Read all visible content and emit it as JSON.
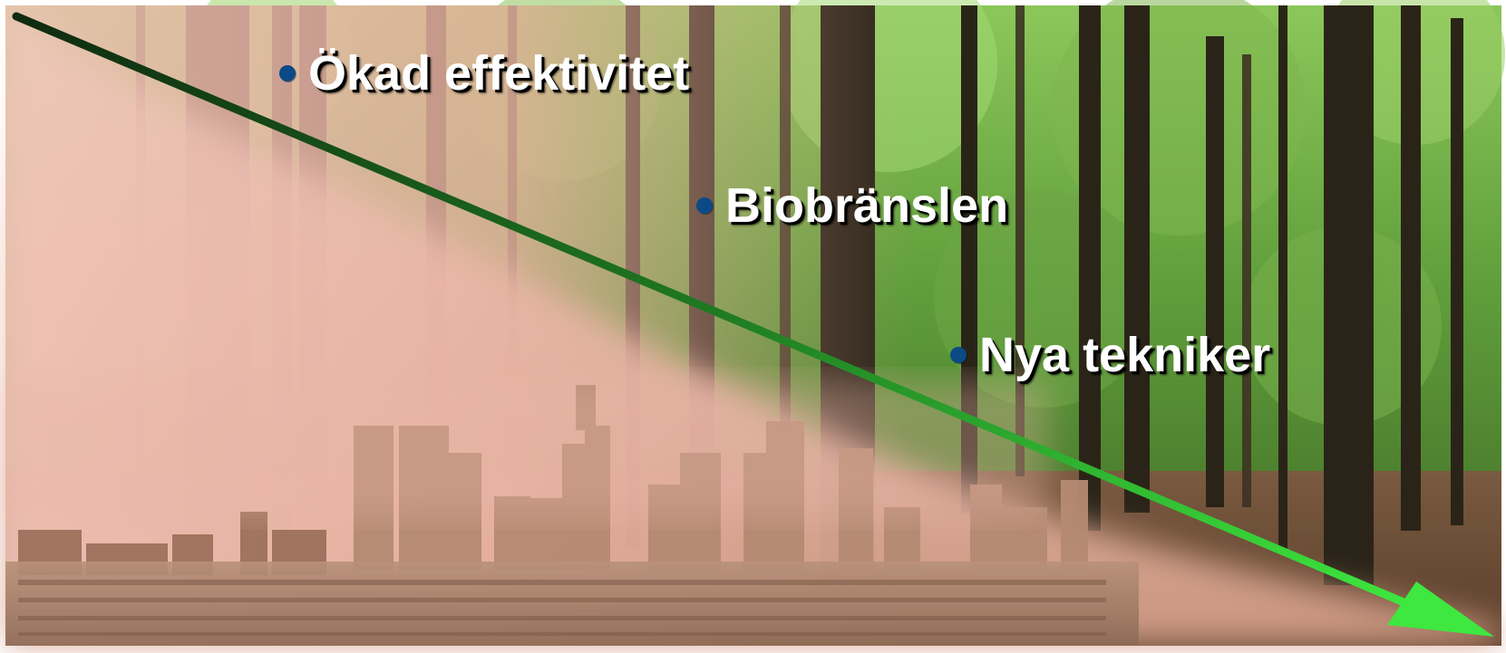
{
  "bullets": [
    {
      "text": "Ökad effektivitet"
    },
    {
      "text": "Biobränslen"
    },
    {
      "text": "Nya tekniker"
    }
  ],
  "colors": {
    "bullet_dot": "#0b4a86",
    "text": "#ffffff",
    "arrow_start": "#0f2a10",
    "arrow_end": "#3ee83e",
    "forest": "#5e9a3a",
    "smog": "#e9b6a8",
    "city": "#a9826a"
  },
  "icons": [
    "diagonal-arrow-icon"
  ]
}
